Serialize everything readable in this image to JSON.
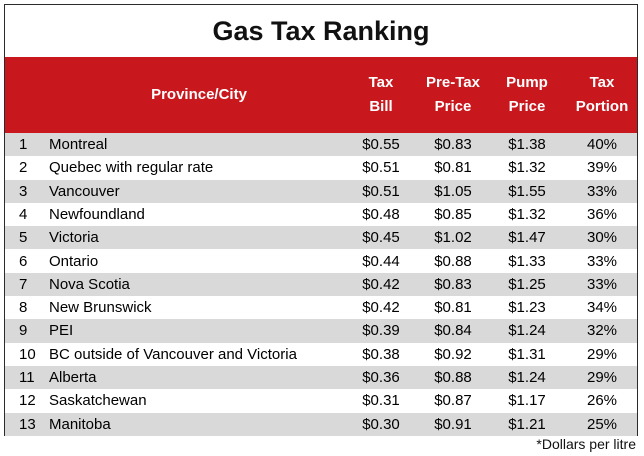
{
  "chart_data": {
    "type": "table",
    "title": "Gas Tax Ranking",
    "columns": [
      "",
      "Province/City",
      "Tax Bill",
      "Pre-Tax Price",
      "Pump Price",
      "Tax Portion"
    ],
    "header": {
      "province": "Province/City",
      "tax_line1": "Tax",
      "tax_line2": "Bill",
      "pre_line1": "Pre-Tax",
      "pre_line2": "Price",
      "pump_line1": "Pump",
      "pump_line2": "Price",
      "pct_line1": "Tax",
      "pct_line2": "Portion"
    },
    "rows": [
      {
        "rank": "1",
        "name": "Montreal",
        "tax": "$0.55",
        "pre": "$0.83",
        "pump": "$1.38",
        "pct": "40%"
      },
      {
        "rank": "2",
        "name": "Quebec with regular rate",
        "tax": "$0.51",
        "pre": "$0.81",
        "pump": "$1.32",
        "pct": "39%"
      },
      {
        "rank": "3",
        "name": "Vancouver",
        "tax": "$0.51",
        "pre": "$1.05",
        "pump": "$1.55",
        "pct": "33%"
      },
      {
        "rank": "4",
        "name": "Newfoundland",
        "tax": "$0.48",
        "pre": "$0.85",
        "pump": "$1.32",
        "pct": "36%"
      },
      {
        "rank": "5",
        "name": "Victoria",
        "tax": "$0.45",
        "pre": "$1.02",
        "pump": "$1.47",
        "pct": "30%"
      },
      {
        "rank": "6",
        "name": "Ontario",
        "tax": "$0.44",
        "pre": "$0.88",
        "pump": "$1.33",
        "pct": "33%"
      },
      {
        "rank": "7",
        "name": "Nova Scotia",
        "tax": "$0.42",
        "pre": "$0.83",
        "pump": "$1.25",
        "pct": "33%"
      },
      {
        "rank": "8",
        "name": "New Brunswick",
        "tax": "$0.42",
        "pre": "$0.81",
        "pump": "$1.23",
        "pct": "34%"
      },
      {
        "rank": "9",
        "name": "PEI",
        "tax": "$0.39",
        "pre": "$0.84",
        "pump": "$1.24",
        "pct": "32%"
      },
      {
        "rank": "10",
        "name": "BC outside of Vancouver and Victoria",
        "tax": "$0.38",
        "pre": "$0.92",
        "pump": "$1.31",
        "pct": "29%"
      },
      {
        "rank": "11",
        "name": "Alberta",
        "tax": "$0.36",
        "pre": "$0.88",
        "pump": "$1.24",
        "pct": "29%"
      },
      {
        "rank": "12",
        "name": "Saskatchewan",
        "tax": "$0.31",
        "pre": "$0.87",
        "pump": "$1.17",
        "pct": "26%"
      },
      {
        "rank": "13",
        "name": "Manitoba",
        "tax": "$0.30",
        "pre": "$0.91",
        "pump": "$1.21",
        "pct": "25%"
      }
    ],
    "footnote": "*Dollars per litre",
    "colors": {
      "header_bg": "#c8171d",
      "header_text": "#ffffff",
      "stripe": "#d9d9d9"
    }
  }
}
